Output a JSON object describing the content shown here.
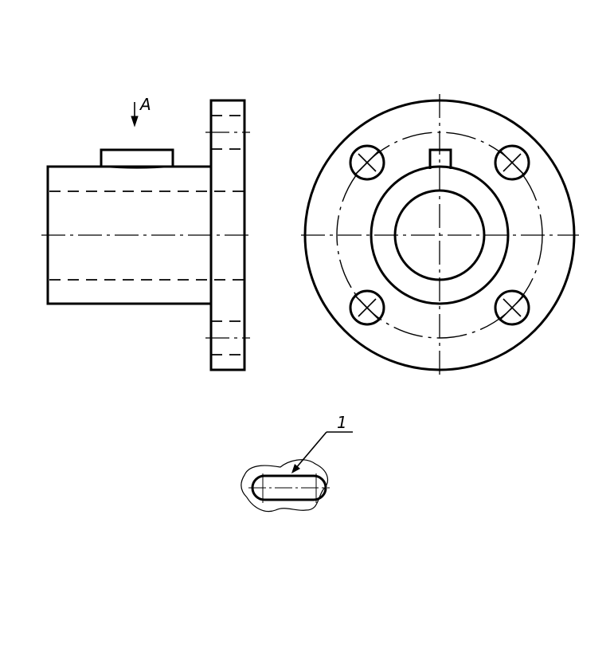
{
  "view_direction": {
    "label": "A",
    "icon": "arrow-down-icon"
  },
  "detail_callout": {
    "label": "1"
  },
  "colors": {
    "line": "#000000",
    "background": "#ffffff"
  }
}
